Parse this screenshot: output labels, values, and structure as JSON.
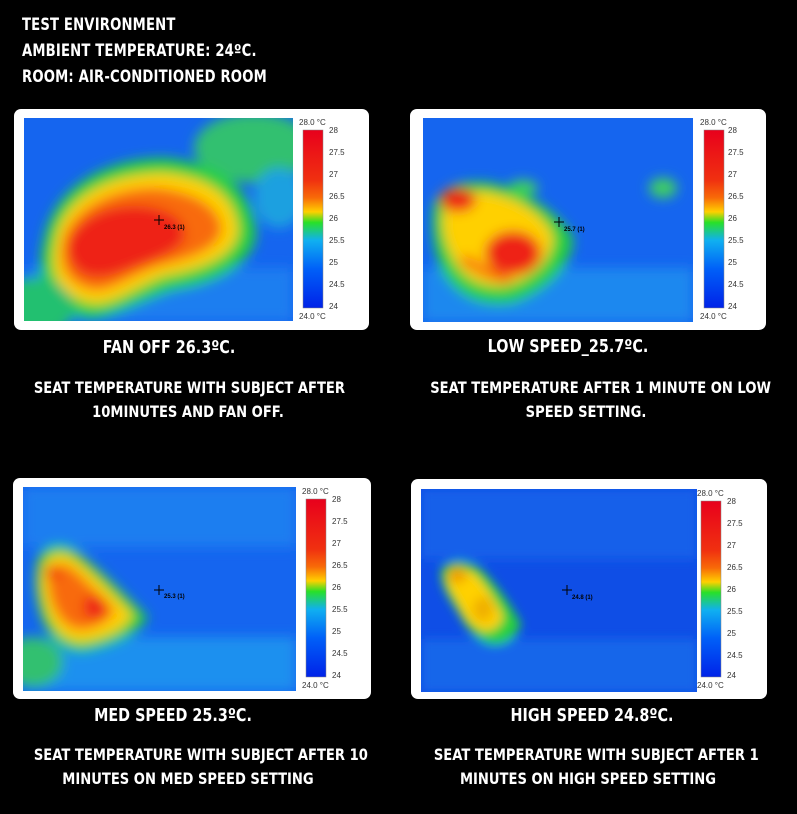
{
  "header": {
    "line1": "TEST ENVIRONMENT",
    "line2": "AMBIENT TEMPERATURE: 24ºC.",
    "line3": "ROOM: AIR-CONDITIONED ROOM"
  },
  "scale": {
    "max_label": "28.0 °C",
    "min_label": "24.0 °C",
    "ticks": [
      "28",
      "27.5",
      "27",
      "26.5",
      "26",
      "25.5",
      "25",
      "24.5",
      "24"
    ],
    "colors": [
      "#e8001c",
      "#f03010",
      "#f86a08",
      "#ffd000",
      "#28e028",
      "#10b0f0",
      "#0060f8",
      "#0022e8"
    ]
  },
  "panels": [
    {
      "title": "FAN OFF 26.3ºC.",
      "description_line1": "SEAT TEMPERATURE WITH SUBJECT AFTER",
      "description_line2": "10MINUTES AND FAN OFF.",
      "marker_label": "26.3 (1)"
    },
    {
      "title": "LOW SPEED_25.7ºC.",
      "description_line1": "SEAT TEMPERATURE AFTER 1 MINUTE ON LOW",
      "description_line2": "SPEED SETTING.",
      "marker_label": "25.7 (1)"
    },
    {
      "title": "MED SPEED 25.3ºC.",
      "description_line1": "SEAT TEMPERATURE WITH SUBJECT AFTER 10",
      "description_line2": "MINUTES ON MED SPEED SETTING",
      "marker_label": "25.3 (1)"
    },
    {
      "title": "HIGH SPEED 24.8ºC.",
      "description_line1": "SEAT TEMPERATURE WITH SUBJECT AFTER 1",
      "description_line2": "MINUTES ON HIGH SPEED SETTING",
      "marker_label": "24.8 (1)"
    }
  ]
}
